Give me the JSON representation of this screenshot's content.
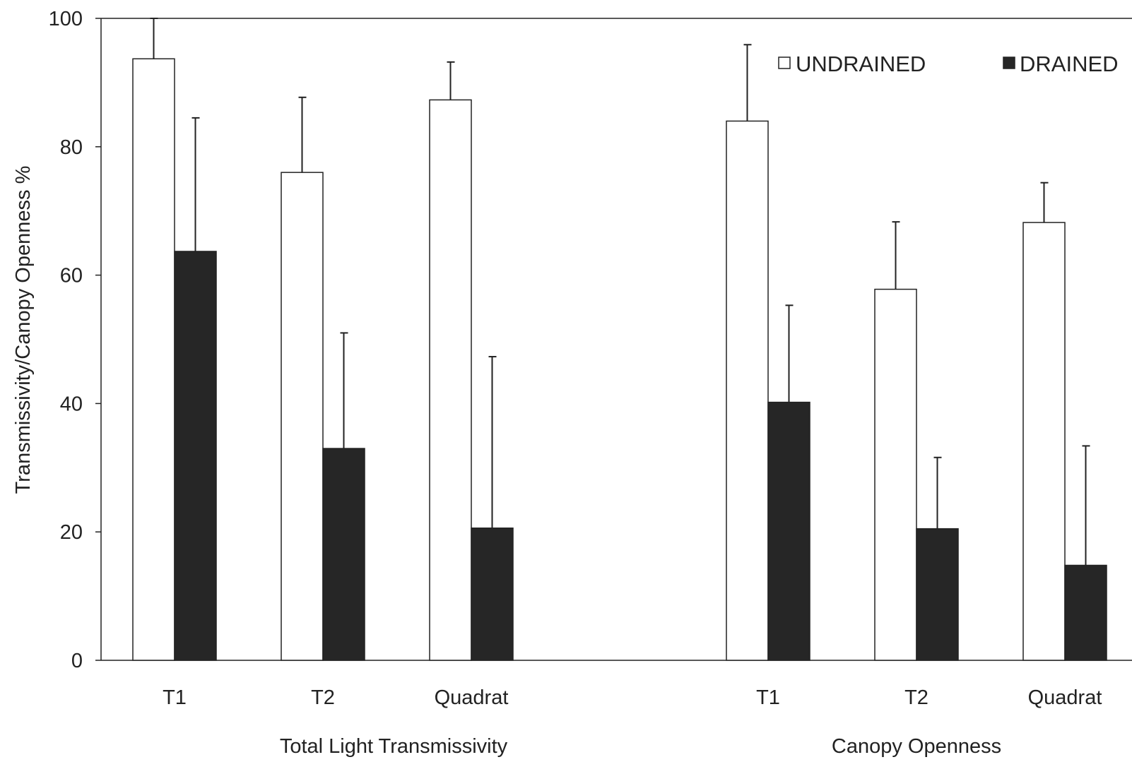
{
  "chart_data": {
    "type": "bar",
    "title": "",
    "ylabel": "Transmissivity/Canopy Openness %",
    "ylim": [
      0,
      100
    ],
    "yticks": [
      0,
      20,
      40,
      60,
      80,
      100
    ],
    "grid": false,
    "legend_position": "top-right",
    "groups": [
      {
        "label": "Total Light Transmissivity",
        "categories": [
          "T1",
          "T2",
          "Quadrat"
        ]
      },
      {
        "label": "Canopy Openness",
        "categories": [
          "T1",
          "T2",
          "Quadrat"
        ]
      }
    ],
    "series": [
      {
        "name": "UNDRAINED",
        "color": "#ffffff",
        "values": [
          93.7,
          76.0,
          87.3,
          84.0,
          57.8,
          68.2
        ],
        "error_plus": [
          6.5,
          11.7,
          5.9,
          11.9,
          10.5,
          6.2
        ]
      },
      {
        "name": "DRAINED",
        "color": "#262626",
        "values": [
          63.7,
          33.0,
          20.6,
          40.2,
          20.5,
          14.8
        ],
        "error_plus": [
          20.8,
          18.0,
          26.7,
          15.1,
          11.1,
          18.6
        ]
      }
    ]
  }
}
